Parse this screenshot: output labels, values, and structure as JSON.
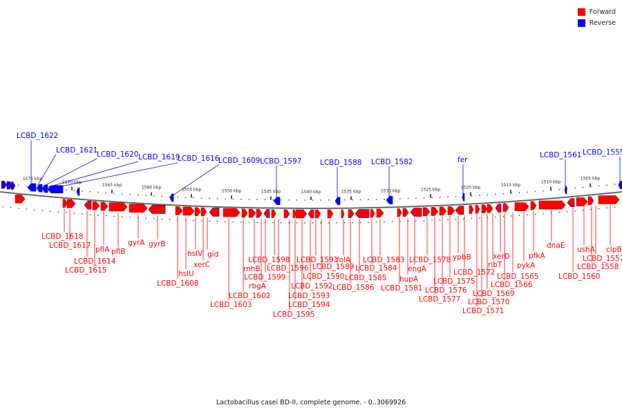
{
  "legend": {
    "forward": {
      "label": "Forward",
      "color": "#ff0000"
    },
    "reverse": {
      "label": "Reverse",
      "color": "#0000ff"
    }
  },
  "caption": "Lactobacillus casei BD-II, complete genome. - 0..3069926",
  "ticks": [
    "1575 kbp",
    "1570 kbp",
    "1565 kbp",
    "1560 kbp",
    "1555 kbp",
    "1550 kbp",
    "1545 kbp",
    "1540 kbp",
    "1535 kbp",
    "1530 kbp",
    "1525 kbp",
    "1520 kbp",
    "1515 kbp",
    "1510 kbp",
    "1505 kbp"
  ],
  "reverse_genes": [
    "LCBD_1622",
    "LCBD_1621",
    "LCBD_1620",
    "LCBD_1619",
    "LCBD_1616",
    "LCBD_1609",
    "LCBD_1597",
    "LCBD_1588",
    "LCBD_1582",
    "fer",
    "LCBD_1561",
    "LCBD_1555"
  ],
  "forward_genes": [
    "LCBD_1618",
    "LCBD_1617",
    "LCBD_1614",
    "LCBD_1615",
    "pflA",
    "pflB",
    "gyrA",
    "gyrB",
    "LCBD_1608",
    "hslU",
    "hslV",
    "xerC",
    "gid",
    "LCBD_1603",
    "LCBD_1602",
    "rbgA",
    "rnhB",
    "LCBD_1599",
    "LCBD_1598",
    "LCBD_1596",
    "LCBD_1595",
    "LCBD_1594",
    "LCBD_1593",
    "LCBD_1592",
    "LCBD_1591",
    "LCBD_1590",
    "LCBD_1589",
    "folA",
    "LCBD_1586",
    "LCBD_1585",
    "LCBD_1584",
    "LCBD_1583",
    "LCBD_1581",
    "hupA",
    "engA",
    "LCBD_1578",
    "LCBD_1577",
    "LCBD_1576",
    "LCBD_1575",
    "ypbB",
    "LCBD_1572",
    "LCBD_1571",
    "LCBD_1570",
    "LCBD_1569",
    "ribT",
    "xerD",
    "LCBD_1566",
    "LCBD_1565",
    "pykA",
    "pfkA",
    "dnaE",
    "LCBD_1560",
    "ushA",
    "LCBD_1558",
    "LCBD_1557",
    "clpB"
  ]
}
